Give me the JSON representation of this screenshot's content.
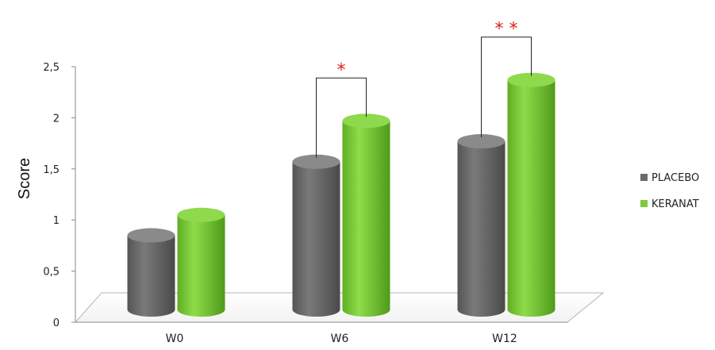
{
  "chart_data": {
    "type": "bar",
    "style": "3d-cylinder",
    "categories": [
      "W0",
      "W6",
      "W12"
    ],
    "series": [
      {
        "name": "PLACEBO",
        "values": [
          0.85,
          1.57,
          1.77
        ],
        "color": "#6b6b6b"
      },
      {
        "name": "KERANAT",
        "values": [
          1.05,
          1.97,
          2.37
        ],
        "color": "#7ec93a"
      }
    ],
    "title": "",
    "xlabel": "",
    "ylabel": "Score",
    "ylim": [
      0,
      2.5
    ],
    "yticks": [
      "0",
      "0,5",
      "1",
      "1,5",
      "2",
      "2,5"
    ],
    "grid": false,
    "legend_position": "right",
    "significance": [
      {
        "category": "W6",
        "marker": "*"
      },
      {
        "category": "W12",
        "marker": "**"
      }
    ],
    "colors": {
      "significance": "#e0201c",
      "axis": "#888888"
    }
  }
}
